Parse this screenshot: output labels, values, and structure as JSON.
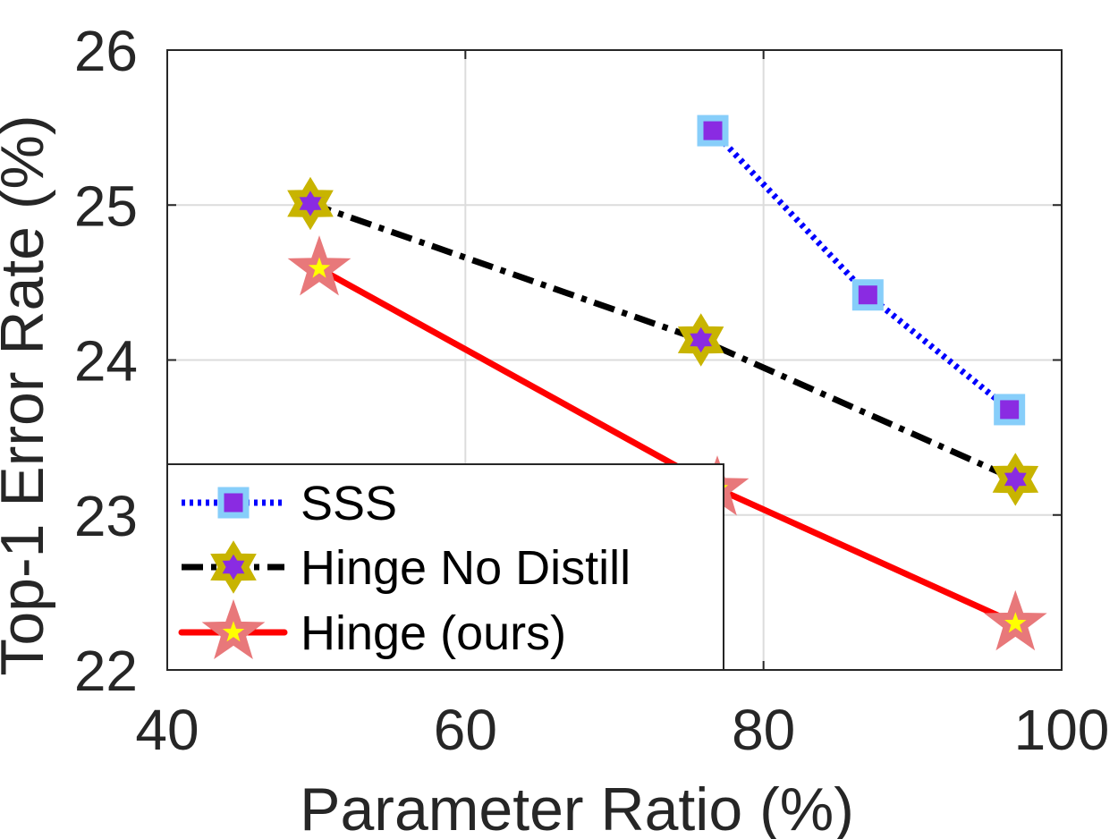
{
  "chart_data": {
    "type": "line",
    "title": "",
    "xlabel": "Parameter Ratio (%)",
    "ylabel": "Top-1 Error Rate (%)",
    "xlim": [
      40,
      100
    ],
    "ylim": [
      22,
      26
    ],
    "xticks": [
      40,
      60,
      80,
      100
    ],
    "yticks": [
      22,
      23,
      24,
      25,
      26
    ],
    "grid": true,
    "legend_position": "bottom-left",
    "series": [
      {
        "name": "SSS",
        "x": [
          76.6,
          87.0,
          96.5
        ],
        "y": [
          25.48,
          24.42,
          23.68
        ],
        "line_color": "#0000ff",
        "line_style": "dotted",
        "marker": "square",
        "marker_edge_color": "#87cefa",
        "marker_face_color": "#8a2be2"
      },
      {
        "name": "Hinge No Distill",
        "x": [
          49.6,
          75.8,
          96.9
        ],
        "y": [
          25.01,
          24.13,
          23.23
        ],
        "line_color": "#000000",
        "line_style": "dash-dot",
        "marker": "hexagram",
        "marker_edge_color": "#c8b400",
        "marker_face_color": "#8a2be2"
      },
      {
        "name": "Hinge (ours)",
        "x": [
          50.2,
          76.9,
          96.9
        ],
        "y": [
          24.59,
          23.17,
          22.3
        ],
        "line_color": "#ff0000",
        "line_style": "solid",
        "marker": "pentagram",
        "marker_edge_color": "#e8787a",
        "marker_face_color": "#ffff00"
      }
    ]
  }
}
